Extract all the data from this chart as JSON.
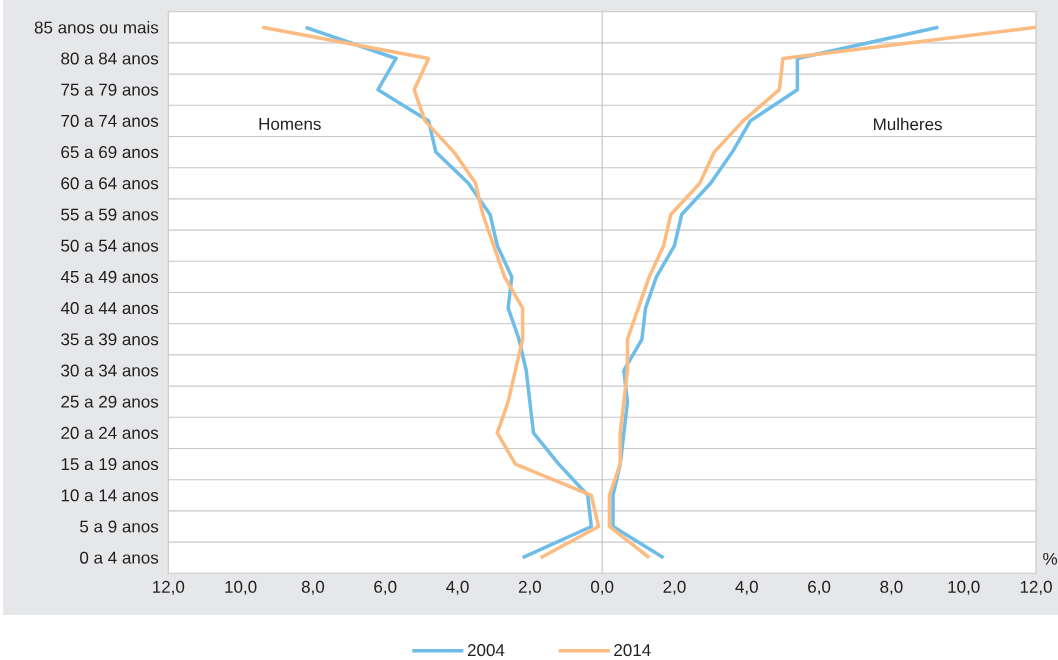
{
  "chart_data": {
    "type": "line",
    "orientation": "horizontal",
    "categories": [
      "85 anos ou mais",
      "80 a 84 anos",
      "75 a 79 anos",
      "70 a 74 anos",
      "65 a 69 anos",
      "60 a 64 anos",
      "55 a 59 anos",
      "50 a 54 anos",
      "45 a 49 anos",
      "40 a 44 anos",
      "35 a 39 anos",
      "30 a 34 anos",
      "25 a 29 anos",
      "20 a 24 anos",
      "15 a 19 anos",
      "10 a 14 anos",
      "5 a 9 anos",
      "0 a 4 anos"
    ],
    "series": [
      {
        "name": "2004",
        "color": "#6ebce8",
        "values": [
          -8.2,
          -5.7,
          -6.2,
          -4.8,
          -4.6,
          -3.7,
          -3.1,
          -2.9,
          -2.5,
          -2.6,
          -2.3,
          -2.1,
          -2.0,
          -1.9,
          -1.2,
          -0.4,
          -0.3,
          -2.2
        ]
      },
      {
        "name": "2014",
        "color": "#fcbb80",
        "values": [
          -9.4,
          -4.8,
          -5.2,
          -4.9,
          -4.1,
          -3.5,
          -3.3,
          -3.0,
          -2.7,
          -2.2,
          -2.2,
          -2.4,
          -2.6,
          -2.9,
          -2.4,
          -0.3,
          -0.1,
          -1.7
        ]
      },
      {
        "color": "#6ebce8",
        "values": [
          9.3,
          5.4,
          5.4,
          4.1,
          3.6,
          3.0,
          2.2,
          2.0,
          1.5,
          1.2,
          1.1,
          0.6,
          0.7,
          0.6,
          0.5,
          0.3,
          0.3,
          1.7
        ]
      },
      {
        "color": "#fcbb80",
        "values": [
          12.0,
          5.0,
          4.9,
          3.9,
          3.1,
          2.7,
          1.9,
          1.7,
          1.3,
          1.0,
          0.7,
          0.7,
          0.6,
          0.5,
          0.5,
          0.2,
          0.2,
          1.3
        ]
      }
    ],
    "xlabel": "%",
    "xlim": [
      -12,
      12
    ],
    "xticks": [
      {
        "value": -12,
        "label": "12,0"
      },
      {
        "value": -10,
        "label": "10,0"
      },
      {
        "value": -8,
        "label": "8,0"
      },
      {
        "value": -6,
        "label": "6,0"
      },
      {
        "value": -4,
        "label": "4,0"
      },
      {
        "value": -2,
        "label": "2,0"
      },
      {
        "value": 0,
        "label": "0,0"
      },
      {
        "value": 2,
        "label": "2,0"
      },
      {
        "value": 4,
        "label": "4,0"
      },
      {
        "value": 6,
        "label": "6,0"
      },
      {
        "value": 8,
        "label": "8,0"
      },
      {
        "value": 10,
        "label": "10,0"
      },
      {
        "value": 12,
        "label": "12,0"
      }
    ],
    "annotations": [
      "Homens",
      "Mulheres"
    ],
    "ref_lines": [
      {
        "axis": "x",
        "value": 0,
        "color": "#c3c4c6"
      }
    ],
    "grid": "y",
    "legend": "bottom"
  }
}
